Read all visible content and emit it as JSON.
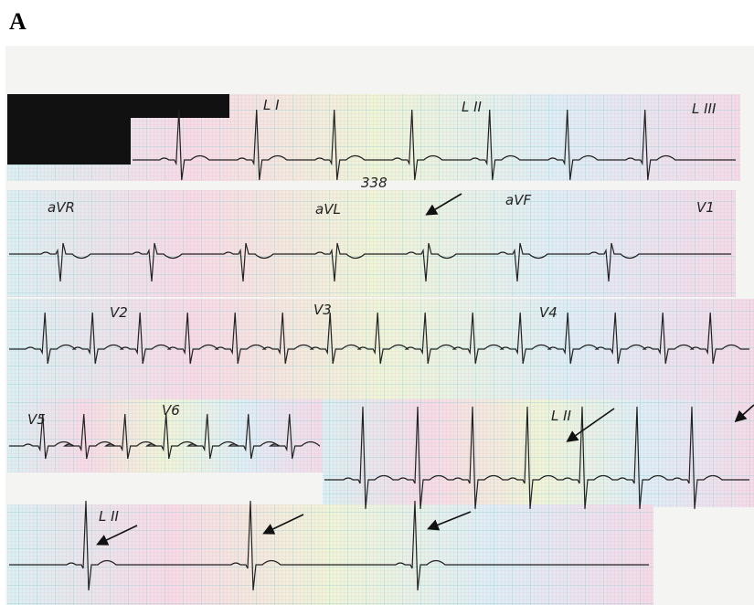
{
  "panel_label": "A",
  "annotations": [
    {
      "label": "L I"
    },
    {
      "label": "L II"
    },
    {
      "label": "L III"
    },
    {
      "label": "aVR"
    },
    {
      "label": "aVL"
    },
    {
      "label": "aVF"
    },
    {
      "label": "V1"
    },
    {
      "label": "V2"
    },
    {
      "label": "V3"
    },
    {
      "label": "V4"
    },
    {
      "label": "V5"
    },
    {
      "label": "V6"
    },
    {
      "label": "L II"
    },
    {
      "label": "L II"
    },
    {
      "label": "338"
    }
  ]
}
